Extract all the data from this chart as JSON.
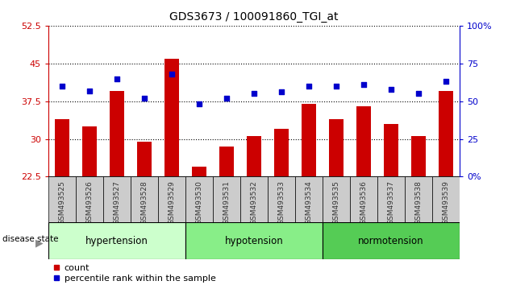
{
  "title": "GDS3673 / 100091860_TGI_at",
  "samples": [
    "GSM493525",
    "GSM493526",
    "GSM493527",
    "GSM493528",
    "GSM493529",
    "GSM493530",
    "GSM493531",
    "GSM493532",
    "GSM493533",
    "GSM493534",
    "GSM493535",
    "GSM493536",
    "GSM493537",
    "GSM493538",
    "GSM493539"
  ],
  "counts": [
    34.0,
    32.5,
    39.5,
    29.5,
    46.0,
    24.5,
    28.5,
    30.5,
    32.0,
    37.0,
    34.0,
    36.5,
    33.0,
    30.5,
    39.5
  ],
  "percentiles": [
    60,
    57,
    65,
    52,
    68,
    48,
    52,
    55,
    56,
    60,
    60,
    61,
    58,
    55,
    63
  ],
  "ylim_left": [
    22.5,
    52.5
  ],
  "ylim_right": [
    0,
    100
  ],
  "yticks_left": [
    22.5,
    30,
    37.5,
    45,
    52.5
  ],
  "ytick_labels_left": [
    "22.5",
    "30",
    "37.5",
    "45",
    "52.5"
  ],
  "yticks_right": [
    0,
    25,
    50,
    75,
    100
  ],
  "ytick_labels_right": [
    "0%",
    "25",
    "50",
    "75",
    "100%"
  ],
  "bar_color": "#cc0000",
  "dot_color": "#0000cc",
  "groups": [
    {
      "label": "hypertension",
      "start": 0,
      "end": 5,
      "color": "#ccffcc"
    },
    {
      "label": "hypotension",
      "start": 5,
      "end": 10,
      "color": "#88ee88"
    },
    {
      "label": "normotension",
      "start": 10,
      "end": 15,
      "color": "#55cc55"
    }
  ],
  "group_label_prefix": "disease state",
  "legend_count_label": "count",
  "legend_pct_label": "percentile rank within the sample",
  "tick_label_color": "#333333",
  "left_axis_color": "#cc0000",
  "right_axis_color": "#0000cc",
  "grid_linestyle": ":",
  "grid_color": "black",
  "grid_linewidth": 0.8,
  "bar_width": 0.55
}
